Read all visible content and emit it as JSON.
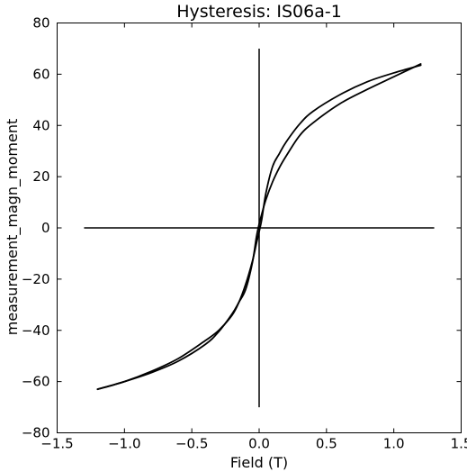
{
  "chart_data": {
    "type": "line",
    "title": "Hysteresis: IS06a-1",
    "xlabel": "Field (T)",
    "ylabel": "measurement_magn_moment",
    "xlim": [
      -1.5,
      1.5
    ],
    "ylim": [
      -80,
      80
    ],
    "x_ticks": [
      -1.5,
      -1.0,
      -0.5,
      0.0,
      0.5,
      1.0,
      1.5
    ],
    "x_tick_labels": [
      "−1.5",
      "−1.0",
      "−0.5",
      "0.0",
      "0.5",
      "1.0",
      "1.5"
    ],
    "y_ticks": [
      -80,
      -60,
      -40,
      -20,
      0,
      20,
      40,
      60,
      80
    ],
    "y_tick_labels": [
      "−80",
      "−60",
      "−40",
      "−20",
      "0",
      "20",
      "40",
      "60",
      "80"
    ],
    "grid": false,
    "reference_lines": [
      {
        "x": [
          -1.3,
          1.3
        ],
        "y": [
          0,
          0
        ]
      },
      {
        "x": [
          0,
          0
        ],
        "y": [
          -70,
          70
        ]
      }
    ],
    "series": [
      {
        "color": "#000000",
        "x": [
          1.2,
          1.0,
          0.8,
          0.6,
          0.4,
          0.3,
          0.2,
          0.15,
          0.1,
          0.05,
          0.02,
          0.0,
          -0.02,
          -0.05,
          -0.1,
          -0.15,
          -0.2,
          -0.3,
          -0.4,
          -0.6,
          -0.8,
          -1.0,
          -1.2
        ],
        "y": [
          64,
          59,
          54,
          48.5,
          41,
          36,
          28,
          23.5,
          18,
          11,
          5.5,
          1.5,
          -3.5,
          -13.5,
          -24,
          -29,
          -33.5,
          -40.5,
          -45.5,
          -52,
          -56.5,
          -60,
          -63
        ]
      },
      {
        "color": "#000000",
        "x": [
          -1.2,
          -1.0,
          -0.8,
          -0.6,
          -0.4,
          -0.3,
          -0.2,
          -0.15,
          -0.1,
          -0.05,
          -0.02,
          0.0,
          0.02,
          0.05,
          0.1,
          0.15,
          0.2,
          0.3,
          0.4,
          0.6,
          0.8,
          1.0,
          1.2
        ],
        "y": [
          -63,
          -60,
          -56,
          -51,
          -44,
          -40,
          -34,
          -29,
          -22,
          -13,
          -6,
          -1.5,
          3.5,
          13.5,
          24,
          29,
          33.5,
          40.5,
          45.5,
          52,
          57,
          60.5,
          63.5
        ]
      }
    ]
  }
}
